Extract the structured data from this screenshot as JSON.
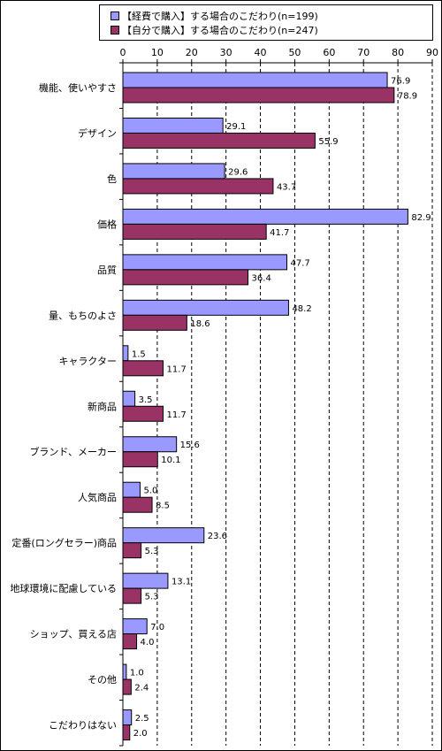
{
  "chart_data": {
    "type": "bar",
    "orientation": "horizontal",
    "categories": [
      "機能、使いやすさ",
      "デザイン",
      "色",
      "価格",
      "品質",
      "量、もちのよさ",
      "キャラクター",
      "新商品",
      "ブランド、メーカー",
      "人気商品",
      "定番(ロングセラー)商品",
      "地球環境に配慮している",
      "ショップ、買える店",
      "その他",
      "こだわりはない"
    ],
    "series": [
      {
        "name": "【経費で購入】する場合のこだわり(n=199)",
        "color": "#9999ff",
        "values": [
          76.9,
          29.1,
          29.6,
          82.9,
          47.7,
          48.2,
          1.5,
          3.5,
          15.6,
          5.0,
          23.6,
          13.1,
          7.0,
          1.0,
          2.5
        ]
      },
      {
        "name": "【自分で購入】する場合のこだわり(n=247)",
        "color": "#993366",
        "values": [
          78.9,
          55.9,
          43.7,
          41.7,
          36.4,
          18.6,
          11.7,
          11.7,
          10.1,
          8.5,
          5.3,
          5.3,
          4.0,
          2.4,
          2.0
        ]
      }
    ],
    "xlim": [
      0,
      90
    ],
    "xticks": [
      0,
      10,
      20,
      30,
      40,
      50,
      60,
      70,
      80,
      90
    ],
    "value_format": "0.0",
    "legend_position": "top",
    "grid": "vertical dashed"
  }
}
